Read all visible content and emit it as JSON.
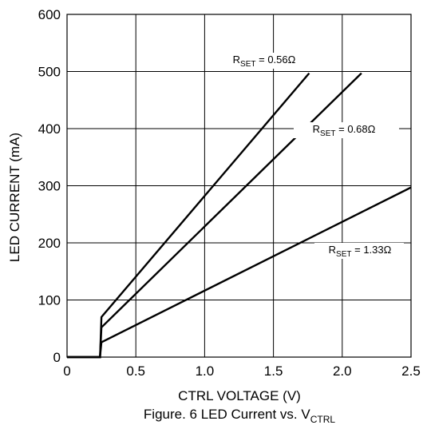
{
  "chart_data": {
    "type": "line",
    "xlabel": "CTRL VOLTAGE (V)",
    "ylabel": "LED CURRENT (mA)",
    "xlim": [
      0,
      2.5
    ],
    "ylim": [
      0,
      600
    ],
    "x_ticks": [
      "0",
      "0.5",
      "1.0",
      "1.5",
      "2.0",
      "2.5"
    ],
    "y_ticks": [
      "0",
      "100",
      "200",
      "300",
      "400",
      "500",
      "600"
    ],
    "grid": true,
    "caption": {
      "text": "Figure. 6 LED Current vs. V",
      "sub": "CTRL"
    },
    "series": [
      {
        "name": "R_SET = 0.56Ω",
        "label": {
          "prefix": "R",
          "sub": "SET",
          "suffix": " = 0.56Ω"
        },
        "color": "#000000",
        "points": [
          [
            0,
            0
          ],
          [
            0.24,
            0
          ],
          [
            0.24,
            2
          ],
          [
            0.25,
            70
          ],
          [
            1.76,
            497
          ]
        ]
      },
      {
        "name": "R_SET = 0.68Ω",
        "label": {
          "prefix": "R",
          "sub": "SET",
          "suffix": " = 0.68Ω"
        },
        "color": "#000000",
        "points": [
          [
            0,
            0
          ],
          [
            0.24,
            0
          ],
          [
            0.24,
            2
          ],
          [
            0.25,
            52
          ],
          [
            2.14,
            497
          ]
        ]
      },
      {
        "name": "R_SET = 1.33Ω",
        "label": {
          "prefix": "R",
          "sub": "SET",
          "suffix": " = 1.33Ω"
        },
        "color": "#000000",
        "points": [
          [
            0,
            0
          ],
          [
            0.24,
            0
          ],
          [
            0.24,
            2
          ],
          [
            0.25,
            26
          ],
          [
            2.5,
            297
          ]
        ]
      }
    ]
  }
}
